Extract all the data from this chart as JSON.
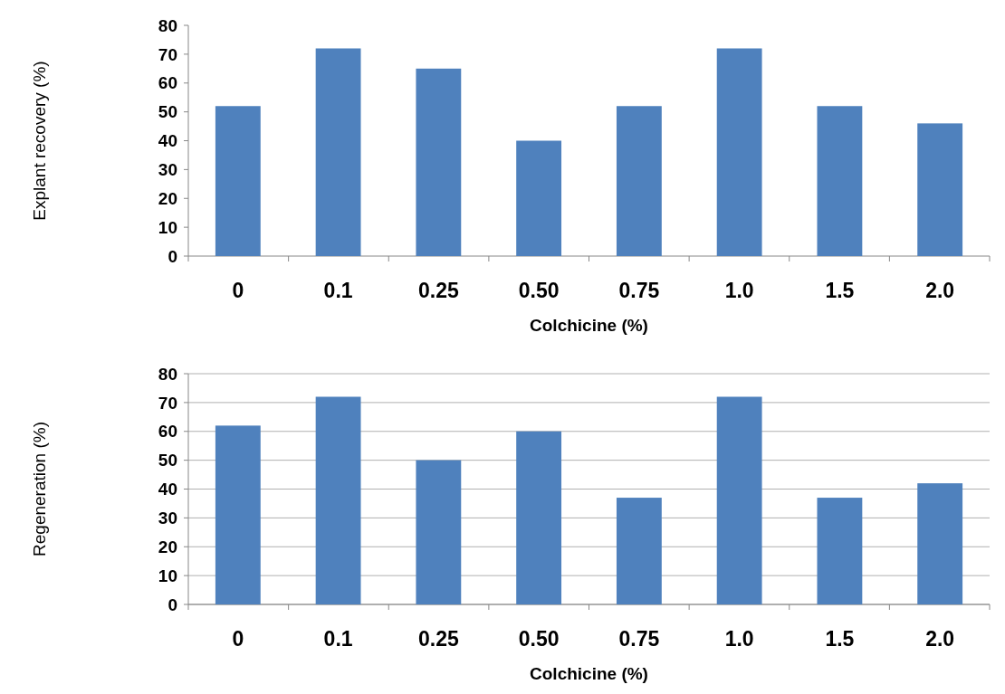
{
  "chart_data": [
    {
      "type": "bar",
      "xlabel": "Colchicine (%)",
      "ylabel": "Explant recovery  (%)",
      "categories": [
        "0",
        "0.1",
        "0.25",
        "0.50",
        "0.75",
        "1.0",
        "1.5",
        "2.0"
      ],
      "values": [
        52,
        72,
        65,
        40,
        52,
        72,
        52,
        46
      ],
      "color": "#4f81bd",
      "ylim": [
        0,
        80
      ],
      "yticks": [
        0,
        10,
        20,
        30,
        40,
        50,
        60,
        70,
        80
      ],
      "grid": false
    },
    {
      "type": "bar",
      "xlabel": "Colchicine (%)",
      "ylabel": "Regeneration (%)",
      "categories": [
        "0",
        "0.1",
        "0.25",
        "0.50",
        "0.75",
        "1.0",
        "1.5",
        "2.0"
      ],
      "values": [
        62,
        72,
        50,
        60,
        37,
        72,
        37,
        42
      ],
      "color": "#4f81bd",
      "ylim": [
        0,
        80
      ],
      "yticks": [
        0,
        10,
        20,
        30,
        40,
        50,
        60,
        70,
        80
      ],
      "grid": "y"
    }
  ]
}
